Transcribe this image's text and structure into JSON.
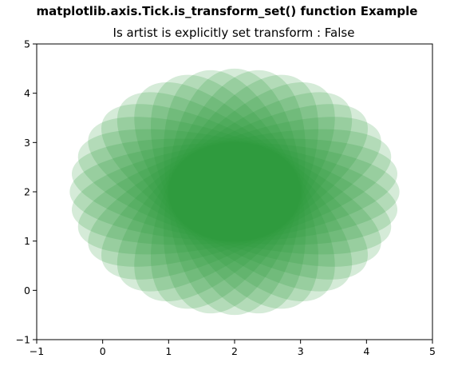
{
  "chart_data": {
    "type": "scatter",
    "suptitle": "matplotlib.axis.Tick.is_transform_set() function Example",
    "title": "Is artist is explicitly set transform : False",
    "xlabel": "",
    "ylabel": "",
    "xlim": [
      -1,
      5
    ],
    "ylim": [
      -1,
      5
    ],
    "xticks": [
      "−1",
      "0",
      "1",
      "2",
      "3",
      "4",
      "5"
    ],
    "yticks": [
      "−1",
      "0",
      "1",
      "2",
      "3",
      "4",
      "5"
    ],
    "grid": false,
    "legend": "none",
    "marker_shape": "ellipse",
    "ellipses": {
      "center": [
        2,
        2
      ],
      "width": 5,
      "height": 2,
      "count": 18,
      "angle_step_deg": 10,
      "color": "#2e9a3a",
      "alpha": 0.2
    }
  }
}
